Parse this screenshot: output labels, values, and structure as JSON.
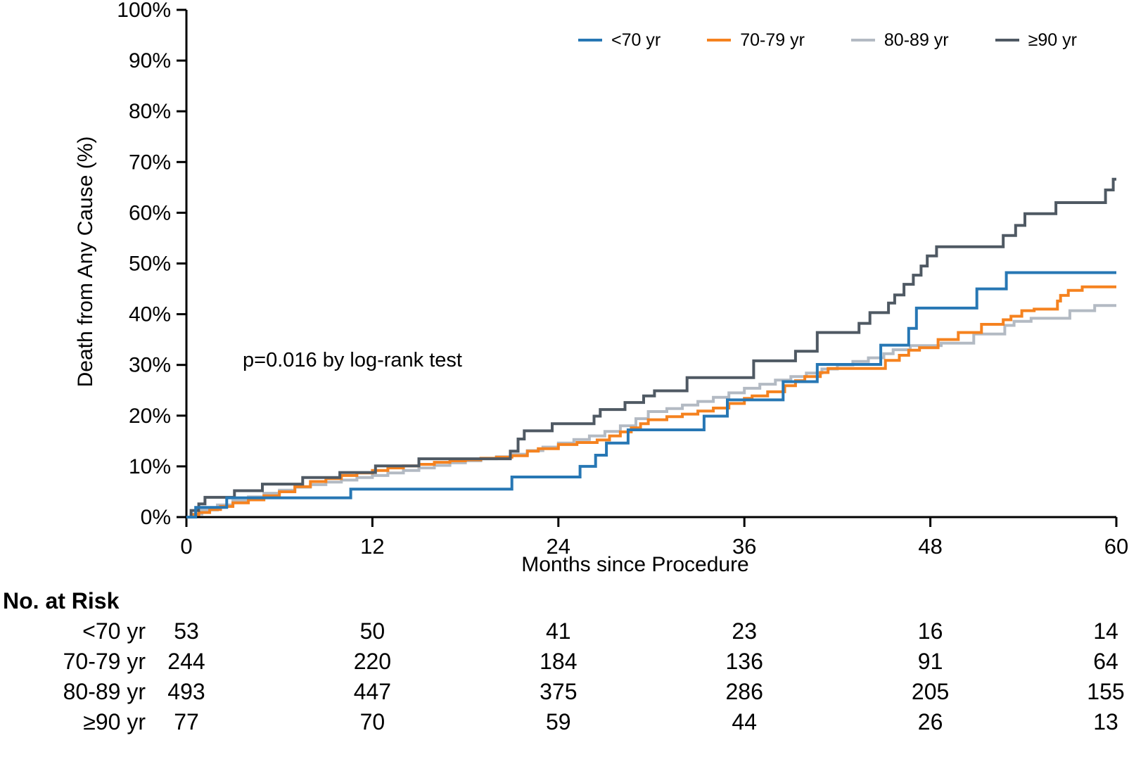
{
  "chart_data": {
    "type": "line",
    "subtype": "kaplan_meier_cumulative_incidence_step",
    "title": "",
    "xlabel": "Months since Procedure",
    "ylabel": "Death from Any Cause (%)",
    "xlim": [
      0,
      60
    ],
    "ylim": [
      0,
      100
    ],
    "x_ticks": [
      0,
      12,
      24,
      36,
      48,
      60
    ],
    "y_ticks": [
      0,
      10,
      20,
      30,
      40,
      50,
      60,
      70,
      80,
      90,
      100
    ],
    "y_tick_suffix": "%",
    "grid": false,
    "legend_position": "top",
    "annotation": "p=0.016 by log-rank test",
    "axis_color": "#000000",
    "series": [
      {
        "name": "<70 yr",
        "color": "#2777b4",
        "points": [
          [
            0,
            0
          ],
          [
            0.6,
            1.9
          ],
          [
            2.6,
            3.8
          ],
          [
            10.6,
            5.5
          ],
          [
            21.0,
            7.9
          ],
          [
            25.4,
            10.0
          ],
          [
            26.4,
            12.2
          ],
          [
            27.1,
            14.6
          ],
          [
            28.5,
            17.2
          ],
          [
            33.4,
            19.9
          ],
          [
            34.9,
            23.1
          ],
          [
            38.5,
            26.7
          ],
          [
            40.7,
            30.1
          ],
          [
            44.8,
            33.9
          ],
          [
            46.6,
            37.2
          ],
          [
            47.1,
            41.2
          ],
          [
            51.0,
            45.0
          ],
          [
            52.9,
            48.2
          ],
          [
            60,
            48.2
          ]
        ]
      },
      {
        "name": "70-79 yr",
        "color": "#f5821f",
        "points": [
          [
            0,
            0
          ],
          [
            0.3,
            0.5
          ],
          [
            0.8,
            0.9
          ],
          [
            1.5,
            1.5
          ],
          [
            2.2,
            2.1
          ],
          [
            3,
            2.8
          ],
          [
            4,
            3.4
          ],
          [
            5,
            4.2
          ],
          [
            6,
            5.0
          ],
          [
            7,
            6.0
          ],
          [
            8,
            7.0
          ],
          [
            9,
            7.6
          ],
          [
            10,
            8.2
          ],
          [
            11,
            8.7
          ],
          [
            12,
            9.2
          ],
          [
            13,
            9.7
          ],
          [
            14,
            10.1
          ],
          [
            15,
            10.4
          ],
          [
            16,
            10.8
          ],
          [
            17,
            11.1
          ],
          [
            18,
            11.3
          ],
          [
            19,
            11.6
          ],
          [
            20,
            11.8
          ],
          [
            21,
            12.1
          ],
          [
            22,
            13.0
          ],
          [
            22.7,
            13.5
          ],
          [
            24,
            14.3
          ],
          [
            25.2,
            14.7
          ],
          [
            26.5,
            15.2
          ],
          [
            27.3,
            16.0
          ],
          [
            28,
            16.8
          ],
          [
            28.7,
            17.6
          ],
          [
            29.3,
            18.4
          ],
          [
            29.8,
            19.2
          ],
          [
            31,
            19.8
          ],
          [
            32,
            20.3
          ],
          [
            33,
            20.9
          ],
          [
            34,
            21.5
          ],
          [
            35,
            22.4
          ],
          [
            36,
            23.4
          ],
          [
            36.5,
            23.9
          ],
          [
            37.5,
            24.7
          ],
          [
            38.6,
            25.9
          ],
          [
            39.3,
            26.9
          ],
          [
            39.9,
            27.7
          ],
          [
            40.9,
            28.5
          ],
          [
            41.4,
            29.3
          ],
          [
            45.1,
            30.9
          ],
          [
            46.0,
            31.9
          ],
          [
            46.6,
            32.9
          ],
          [
            47.3,
            33.4
          ],
          [
            48.5,
            35.0
          ],
          [
            49.8,
            36.4
          ],
          [
            51.3,
            38.0
          ],
          [
            52.7,
            38.9
          ],
          [
            53.2,
            39.6
          ],
          [
            53.9,
            40.7
          ],
          [
            54.7,
            41.0
          ],
          [
            56.2,
            42.6
          ],
          [
            56.4,
            43.7
          ],
          [
            56.9,
            44.7
          ],
          [
            57.8,
            45.4
          ],
          [
            60,
            45.4
          ]
        ]
      },
      {
        "name": "80-89 yr",
        "color": "#b3bac3",
        "points": [
          [
            0,
            0
          ],
          [
            0.4,
            0.6
          ],
          [
            1,
            1.4
          ],
          [
            2,
            2.4
          ],
          [
            3,
            3.2
          ],
          [
            4,
            4.0
          ],
          [
            5,
            4.7
          ],
          [
            6,
            5.3
          ],
          [
            7,
            5.9
          ],
          [
            8,
            6.4
          ],
          [
            9,
            6.9
          ],
          [
            10,
            7.3
          ],
          [
            11,
            7.8
          ],
          [
            12,
            8.2
          ],
          [
            13,
            8.7
          ],
          [
            14,
            9.2
          ],
          [
            15,
            9.7
          ],
          [
            16,
            10.2
          ],
          [
            17,
            10.7
          ],
          [
            18,
            11.1
          ],
          [
            19,
            11.5
          ],
          [
            20,
            11.9
          ],
          [
            21,
            12.4
          ],
          [
            22,
            13.1
          ],
          [
            23,
            13.8
          ],
          [
            24,
            14.6
          ],
          [
            25,
            15.3
          ],
          [
            26,
            16.0
          ],
          [
            27,
            16.9
          ],
          [
            28,
            18.0
          ],
          [
            29,
            19.4
          ],
          [
            29.8,
            20.8
          ],
          [
            31,
            21.4
          ],
          [
            32,
            22.1
          ],
          [
            33,
            22.8
          ],
          [
            34,
            23.6
          ],
          [
            35,
            24.5
          ],
          [
            36,
            25.4
          ],
          [
            37,
            26.2
          ],
          [
            38,
            27.0
          ],
          [
            39,
            27.7
          ],
          [
            40,
            28.4
          ],
          [
            41,
            29.2
          ],
          [
            42,
            30.0
          ],
          [
            43,
            30.7
          ],
          [
            44,
            31.4
          ],
          [
            45,
            32.2
          ],
          [
            45.6,
            33.0
          ],
          [
            46.7,
            33.8
          ],
          [
            48.7,
            34.3
          ],
          [
            50.8,
            36.1
          ],
          [
            52.8,
            37.8
          ],
          [
            53.4,
            38.6
          ],
          [
            54.5,
            39.2
          ],
          [
            57.0,
            40.7
          ],
          [
            58.6,
            41.7
          ],
          [
            60,
            41.7
          ]
        ]
      },
      {
        "name": "≥90 yr",
        "color": "#4f5963",
        "points": [
          [
            0,
            0
          ],
          [
            0.3,
            1.3
          ],
          [
            0.8,
            2.6
          ],
          [
            1.2,
            3.9
          ],
          [
            3.1,
            5.2
          ],
          [
            4.9,
            6.5
          ],
          [
            7.5,
            7.8
          ],
          [
            9.9,
            8.8
          ],
          [
            12.2,
            10.1
          ],
          [
            15.0,
            11.5
          ],
          [
            20.9,
            13.0
          ],
          [
            21.4,
            15.4
          ],
          [
            21.8,
            17.0
          ],
          [
            23.6,
            18.4
          ],
          [
            26.3,
            19.9
          ],
          [
            26.7,
            21.2
          ],
          [
            28.3,
            22.6
          ],
          [
            29.5,
            23.9
          ],
          [
            30.2,
            24.9
          ],
          [
            32.3,
            27.5
          ],
          [
            36.6,
            30.8
          ],
          [
            39.3,
            32.7
          ],
          [
            40.7,
            36.4
          ],
          [
            43.4,
            38.2
          ],
          [
            44.1,
            40.3
          ],
          [
            45.3,
            42.2
          ],
          [
            45.7,
            43.8
          ],
          [
            46.3,
            45.9
          ],
          [
            46.9,
            47.7
          ],
          [
            47.4,
            49.5
          ],
          [
            47.8,
            51.5
          ],
          [
            48.4,
            53.3
          ],
          [
            52.7,
            55.5
          ],
          [
            53.5,
            57.5
          ],
          [
            54.1,
            59.8
          ],
          [
            56.1,
            62.0
          ],
          [
            59.3,
            64.5
          ],
          [
            59.8,
            66.6
          ],
          [
            60,
            66.6
          ]
        ]
      }
    ],
    "no_at_risk": {
      "header": "No. at Risk",
      "timepoints": [
        0,
        12,
        24,
        36,
        48,
        60
      ],
      "rows": [
        {
          "label": "<70 yr",
          "values": [
            "53",
            "50",
            "41",
            "23",
            "16",
            "14"
          ]
        },
        {
          "label": "70-79 yr",
          "values": [
            "244",
            "220",
            "184",
            "136",
            "91",
            "64"
          ]
        },
        {
          "label": "80-89 yr",
          "values": [
            "493",
            "447",
            "375",
            "286",
            "205",
            "155"
          ]
        },
        {
          "label": "≥90 yr",
          "values": [
            "77",
            "70",
            "59",
            "44",
            "26",
            "13"
          ]
        }
      ]
    }
  }
}
